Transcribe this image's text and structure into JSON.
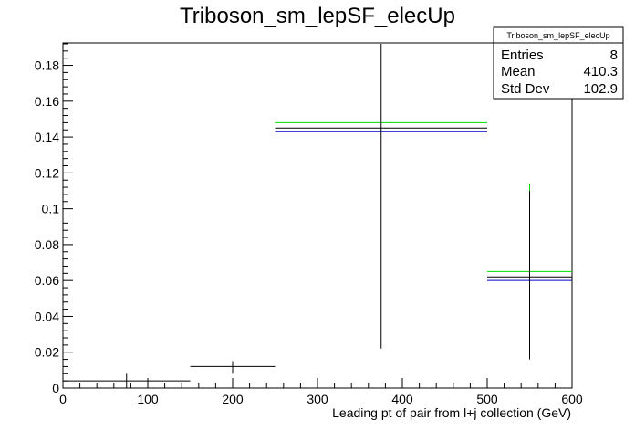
{
  "chart_data": {
    "type": "histogram",
    "title": "Triboson_sm_lepSF_elecUp",
    "xlabel": "Leading pt of pair from l+j collection (GeV)",
    "ylabel": "",
    "xlim": [
      0,
      600
    ],
    "ylim": [
      0,
      0.1925
    ],
    "x_ticks": [
      0,
      100,
      200,
      300,
      400,
      500,
      600
    ],
    "y_ticks": [
      0,
      0.02,
      0.04,
      0.06,
      0.08,
      0.1,
      0.12,
      0.14,
      0.16,
      0.18
    ],
    "y_tick_labels": [
      "0",
      "0.02",
      "0.04",
      "0.06",
      "0.08",
      "0.1",
      "0.12",
      "0.14",
      "0.16",
      "0.18"
    ],
    "grid": false,
    "bins": [
      {
        "x_low": 0,
        "x_high": 150,
        "value": 0.004,
        "err_low": 0.0,
        "err_high": 0.008
      },
      {
        "x_low": 150,
        "x_high": 250,
        "value": 0.012,
        "err_low": 0.008,
        "err_high": 0.015
      },
      {
        "x_low": 250,
        "x_high": 500,
        "value": 0.145,
        "err_low": 0.022,
        "err_high": 0.192
      },
      {
        "x_low": 500,
        "x_high": 600,
        "value": 0.062,
        "err_low": 0.016,
        "err_high": 0.11
      }
    ],
    "variation_lines": [
      {
        "color": "#00dd00",
        "segments": [
          {
            "x_low": 250,
            "x_high": 500,
            "value": 0.148
          },
          {
            "x_low": 500,
            "x_high": 600,
            "value": 0.065
          }
        ]
      },
      {
        "color": "#0000cc",
        "segments": [
          {
            "x_low": 250,
            "x_high": 500,
            "value": 0.143
          },
          {
            "x_low": 500,
            "x_high": 600,
            "value": 0.06
          }
        ]
      }
    ],
    "extra_error_bar": {
      "x": 550,
      "low": 0.104,
      "high": 0.114,
      "color": "#00dd00"
    },
    "stats": {
      "title": "Triboson_sm_lepSF_elecUp",
      "rows": [
        {
          "label": "Entries",
          "value": "8"
        },
        {
          "label": "Mean",
          "value": "410.3"
        },
        {
          "label": "Std Dev",
          "value": "102.9"
        }
      ]
    }
  }
}
